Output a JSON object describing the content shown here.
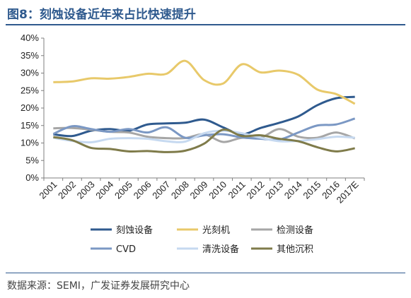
{
  "page": {
    "title": "图8：刻蚀设备近年来占比快速提升",
    "source": "数据来源：SEMI，广发证券发展研究中心"
  },
  "chart_data": {
    "type": "line",
    "title": "图8：刻蚀设备近年来占比快速提升",
    "xlabel": "",
    "ylabel": "",
    "ylim": [
      0,
      40
    ],
    "y_ticks": [
      "0%",
      "5%",
      "10%",
      "15%",
      "20%",
      "25%",
      "30%",
      "35%",
      "40%"
    ],
    "grid": false,
    "legend_position": "bottom",
    "categories": [
      "2001",
      "2002",
      "2003",
      "2004",
      "2005",
      "2006",
      "2007",
      "2008",
      "2009",
      "2010",
      "2011",
      "2012",
      "2013",
      "2014",
      "2015",
      "2016",
      "2017E"
    ],
    "series": [
      {
        "name": "刻蚀设备",
        "color": "#2f5a8e",
        "values": [
          12.5,
          12.0,
          13.5,
          14.0,
          13.5,
          15.3,
          15.6,
          15.8,
          16.7,
          14.5,
          12.5,
          14.3,
          15.8,
          17.6,
          20.8,
          22.8,
          23.2
        ]
      },
      {
        "name": "光刻机",
        "color": "#e8c96a",
        "values": [
          27.4,
          27.6,
          28.5,
          28.4,
          28.9,
          29.8,
          29.8,
          33.5,
          28.0,
          27.0,
          32.5,
          30.2,
          30.7,
          29.5,
          25.3,
          24.0,
          21.2
        ]
      },
      {
        "name": "检测设备",
        "color": "#a6a6a6",
        "values": [
          14.2,
          14.3,
          13.8,
          13.2,
          13.0,
          11.8,
          11.4,
          11.4,
          12.5,
          10.3,
          11.5,
          11.5,
          14.0,
          11.8,
          11.5,
          13.0,
          11.3
        ]
      },
      {
        "name": "CVD",
        "color": "#7b98c4",
        "values": [
          12.6,
          14.8,
          14.0,
          13.2,
          14.0,
          13.0,
          14.5,
          11.5,
          12.2,
          12.5,
          11.6,
          11.2,
          11.0,
          13.0,
          15.0,
          15.3,
          17.0
        ]
      },
      {
        "name": "清洗设备",
        "color": "#c6d9f0",
        "values": [
          11.5,
          10.6,
          10.2,
          11.2,
          11.4,
          11.2,
          10.5,
          10.4,
          12.8,
          13.5,
          12.8,
          11.5,
          10.5,
          10.6,
          11.1,
          11.8,
          11.5
        ]
      },
      {
        "name": "其他沉积",
        "color": "#7f7b4a",
        "values": [
          11.7,
          10.8,
          8.6,
          8.3,
          7.6,
          7.7,
          7.4,
          7.8,
          9.8,
          13.8,
          12.0,
          12.2,
          11.2,
          10.5,
          8.8,
          7.6,
          8.5
        ]
      }
    ]
  }
}
